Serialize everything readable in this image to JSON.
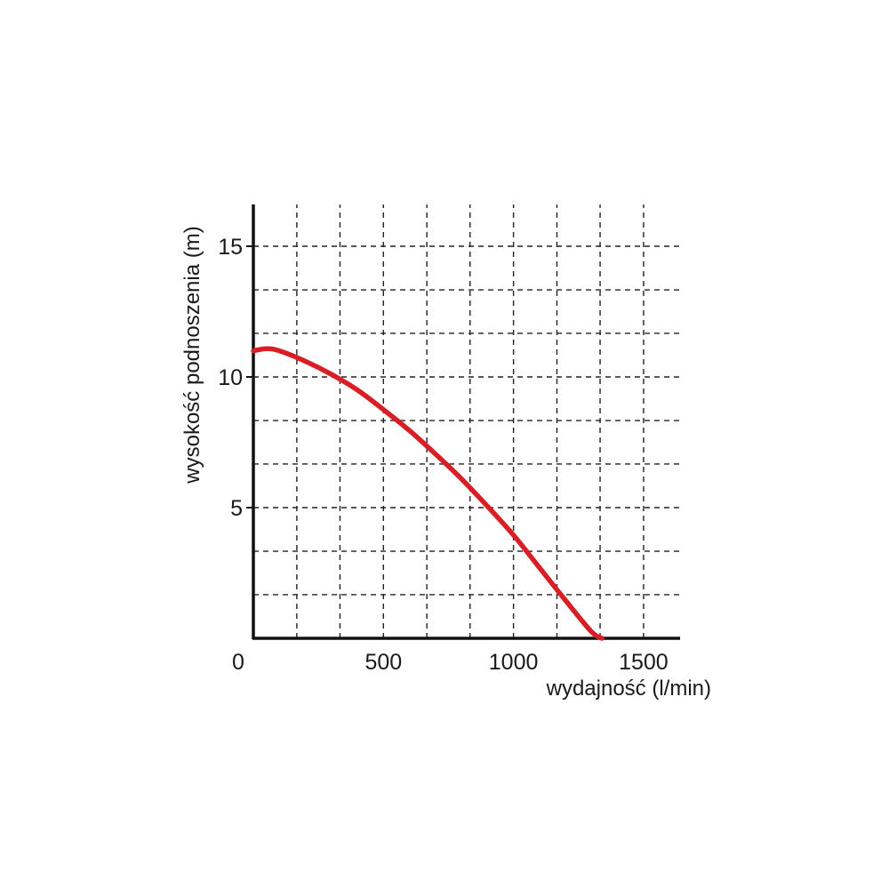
{
  "chart_data": {
    "type": "line",
    "title": "",
    "xlabel": "wydajność (l/min)",
    "ylabel": "wysokość podnoszenia (m)",
    "xlim": [
      0,
      1650
    ],
    "ylim": [
      0,
      16.5
    ],
    "x_ticks": [
      0,
      500,
      1000,
      1500
    ],
    "y_ticks": [
      5,
      10,
      15
    ],
    "x_tick_labels": [
      "0",
      "500",
      "1000",
      "1500"
    ],
    "y_tick_labels": [
      "5",
      "10",
      "15"
    ],
    "x_gridlines": [
      167,
      333,
      500,
      667,
      833,
      1000,
      1167,
      1333,
      1500,
      1667
    ],
    "y_gridlines": [
      1.67,
      3.33,
      5,
      6.67,
      8.33,
      10,
      11.67,
      13.33,
      15,
      16.67
    ],
    "grid": true,
    "grid_style": "dashed",
    "legend": "none",
    "series": [
      {
        "color": "#d81f26",
        "x": [
          0,
          50,
          100,
          200,
          300,
          400,
          500,
          600,
          700,
          800,
          900,
          1000,
          1100,
          1200,
          1300,
          1340
        ],
        "y": [
          11.0,
          11.08,
          11.0,
          10.6,
          10.1,
          9.5,
          8.75,
          7.95,
          7.05,
          6.1,
          5.05,
          3.95,
          2.7,
          1.45,
          0.25,
          0
        ]
      }
    ]
  }
}
